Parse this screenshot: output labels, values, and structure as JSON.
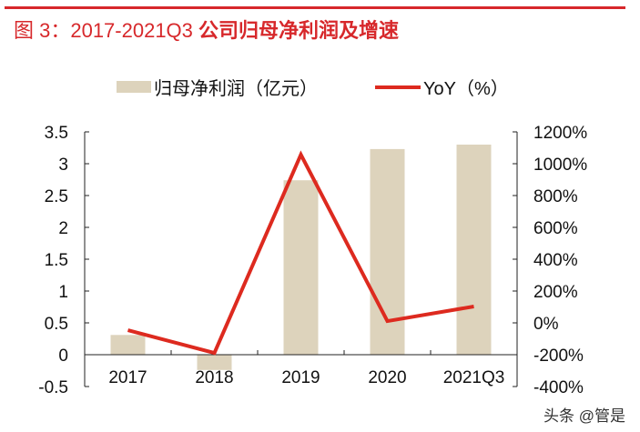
{
  "header": {
    "figure_label": "图 3：2017-2021Q3 ",
    "title_bold": "公司归母净利润及增速"
  },
  "watermark": "头条 @管是",
  "colors": {
    "bar": "#ddd3bc",
    "line": "#dd2a1f",
    "title": "#d7282b"
  },
  "chart_data": {
    "type": "bar+line",
    "title": "图 3：2017-2021Q3 公司归母净利润及增速",
    "categories": [
      "2017",
      "2018",
      "2019",
      "2020",
      "2021Q3"
    ],
    "series": [
      {
        "name": "归母净利润（亿元）",
        "type": "bar",
        "axis": "left",
        "values": [
          0.31,
          -0.24,
          2.74,
          3.23,
          3.3
        ]
      },
      {
        "name": "YoY（%）",
        "type": "line",
        "axis": "right",
        "values": [
          -46,
          -189,
          1057,
          11,
          103
        ]
      }
    ],
    "left_axis": {
      "ylim": [
        -0.5,
        3.5
      ],
      "ticks": [
        "-0.5",
        "0",
        "0.5",
        "1",
        "1.5",
        "2",
        "2.5",
        "3",
        "3.5"
      ]
    },
    "right_axis": {
      "ylim": [
        -400,
        1200
      ],
      "ticks": [
        "-400%",
        "-200%",
        "0%",
        "200%",
        "400%",
        "600%",
        "800%",
        "1000%",
        "1200%"
      ]
    },
    "legend_position": "top",
    "grid": false
  }
}
